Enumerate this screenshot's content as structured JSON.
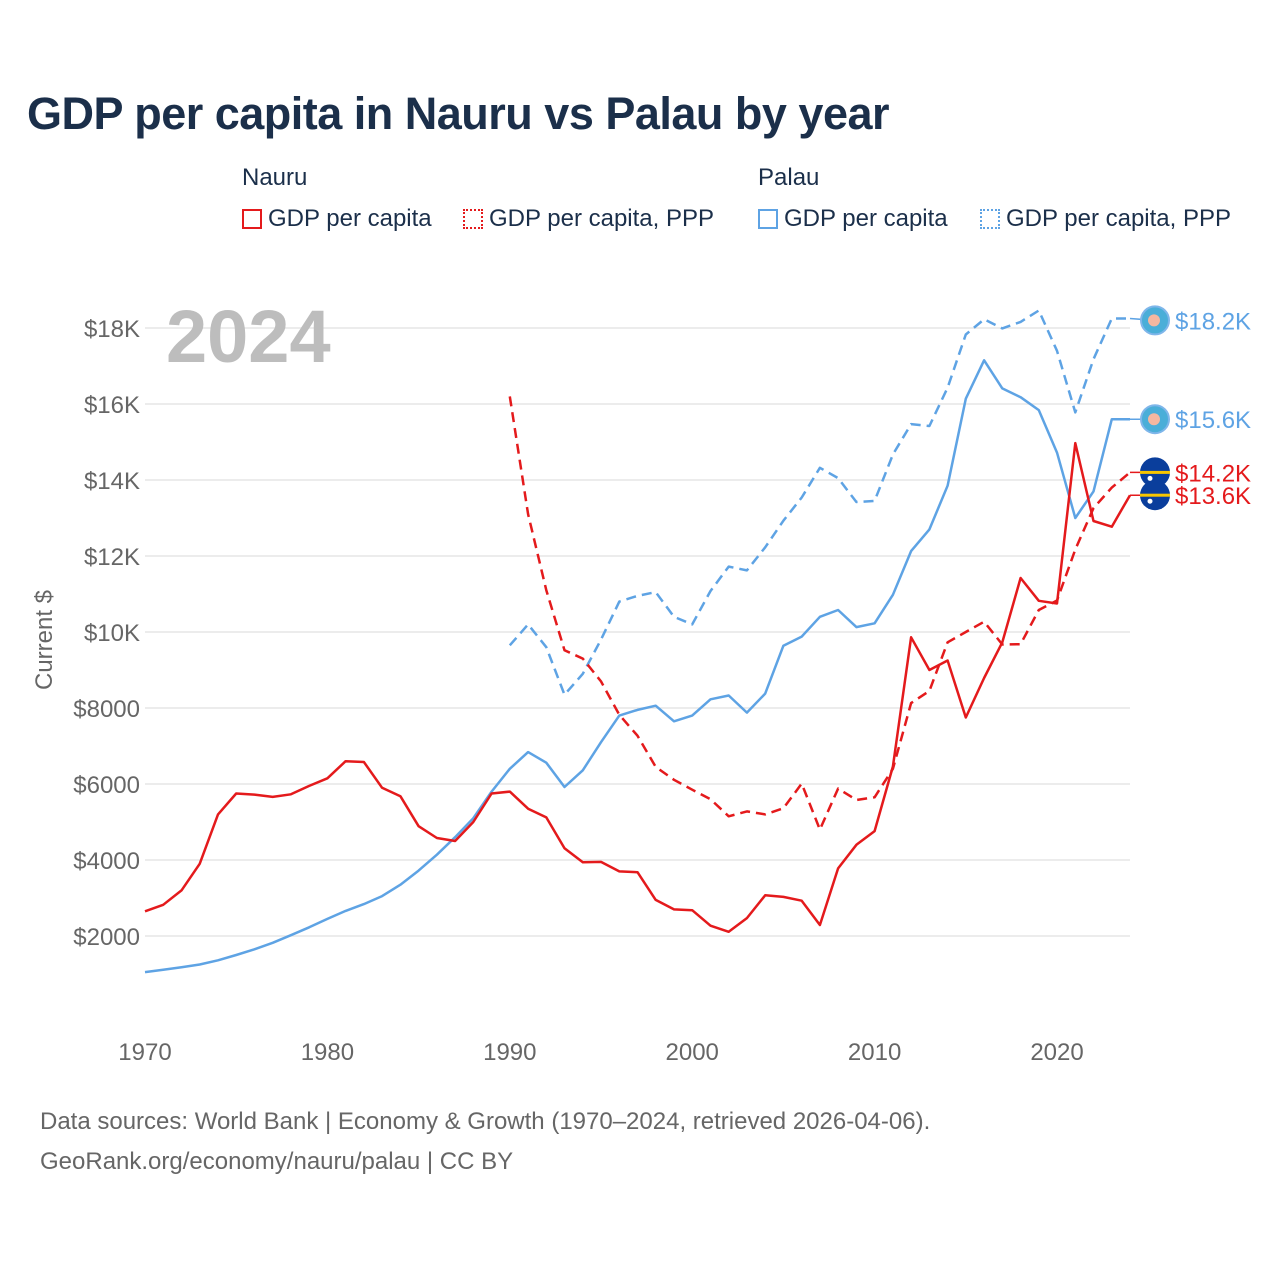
{
  "title": "GDP per capita in Nauru vs Palau by year",
  "legend": {
    "groups": [
      {
        "name": "Nauru",
        "items": [
          {
            "label": "GDP per capita",
            "style": "solid",
            "color": "#e41a1c"
          },
          {
            "label": "GDP per capita, PPP",
            "style": "dotted",
            "color": "#e41a1c"
          }
        ]
      },
      {
        "name": "Palau",
        "items": [
          {
            "label": "GDP per capita",
            "style": "solid",
            "color": "#5ea3e4"
          },
          {
            "label": "GDP per capita, PPP",
            "style": "dotted",
            "color": "#5ea3e4"
          }
        ]
      }
    ]
  },
  "footer": {
    "line1": "Data sources: World Bank | Economy & Growth (1970–2024, retrieved 2026-04-06).",
    "line2": "GeoRank.org/economy/nauru/palau | CC BY"
  },
  "colors": {
    "nauru": "#e41a1c",
    "palau": "#5ea3e4",
    "title": "#1b2f4a",
    "axis_text": "#666666",
    "grid": "#e6e6e6",
    "year_watermark": "#bdbdbd",
    "flag_nauru": "#0a3e9c"
  },
  "chart_data": {
    "type": "line",
    "title": "GDP per capita in Nauru vs Palau by year",
    "year_label": "2024",
    "xlabel": "",
    "ylabel": "Current $",
    "xlim": [
      1970,
      2026
    ],
    "ylim": [
      0,
      19000
    ],
    "x_ticks": [
      1970,
      1980,
      1990,
      2000,
      2010,
      2020
    ],
    "y_ticks": [
      {
        "value": 2000,
        "label": "$2000"
      },
      {
        "value": 4000,
        "label": "$4000"
      },
      {
        "value": 6000,
        "label": "$6000"
      },
      {
        "value": 8000,
        "label": "$8000"
      },
      {
        "value": 10000,
        "label": "$10K"
      },
      {
        "value": 12000,
        "label": "$12K"
      },
      {
        "value": 14000,
        "label": "$14K"
      },
      {
        "value": 16000,
        "label": "$16K"
      },
      {
        "value": 18000,
        "label": "$18K"
      }
    ],
    "series": [
      {
        "name": "Nauru GDP per capita",
        "country": "Nauru",
        "style": "solid",
        "color": "#e41a1c",
        "end_label": "$13.6K",
        "end_value": 13600,
        "x": [
          1970,
          1971,
          1972,
          1973,
          1974,
          1975,
          1976,
          1977,
          1978,
          1979,
          1980,
          1981,
          1982,
          1983,
          1984,
          1985,
          1986,
          1987,
          1988,
          1989,
          1990,
          1991,
          1992,
          1993,
          1994,
          1995,
          1996,
          1997,
          1998,
          1999,
          2000,
          2001,
          2002,
          2003,
          2004,
          2005,
          2006,
          2007,
          2008,
          2009,
          2010,
          2011,
          2012,
          2013,
          2014,
          2015,
          2016,
          2017,
          2018,
          2019,
          2020,
          2021,
          2022,
          2023,
          2024
        ],
        "y": [
          2650,
          2820,
          3200,
          3900,
          5200,
          5750,
          5720,
          5660,
          5730,
          5950,
          6150,
          6600,
          6580,
          5900,
          5680,
          4890,
          4580,
          4500,
          5000,
          5750,
          5800,
          5350,
          5120,
          4310,
          3940,
          3950,
          3700,
          3680,
          2950,
          2700,
          2680,
          2270,
          2110,
          2470,
          3070,
          3030,
          2930,
          2290,
          3780,
          4400,
          4760,
          6460,
          9860,
          9000,
          9250,
          7750,
          8790,
          9730,
          11420,
          10820,
          10750,
          14970,
          12920,
          12770,
          13600
        ]
      },
      {
        "name": "Nauru GDP per capita, PPP",
        "country": "Nauru",
        "style": "dashed",
        "color": "#e41a1c",
        "end_label": "$14.2K",
        "end_value": 14200,
        "x": [
          1990,
          1991,
          1992,
          1993,
          1994,
          1995,
          1996,
          1997,
          1998,
          1999,
          2000,
          2001,
          2002,
          2003,
          2004,
          2005,
          2006,
          2007,
          2008,
          2009,
          2010,
          2011,
          2012,
          2013,
          2014,
          2015,
          2016,
          2017,
          2018,
          2019,
          2020,
          2021,
          2022,
          2023,
          2024
        ],
        "y": [
          16200,
          13100,
          11100,
          9520,
          9300,
          8700,
          7820,
          7270,
          6450,
          6110,
          5850,
          5600,
          5150,
          5280,
          5200,
          5360,
          6010,
          4800,
          5880,
          5580,
          5650,
          6400,
          8130,
          8450,
          9730,
          10000,
          10270,
          9670,
          9680,
          10580,
          10830,
          12170,
          13260,
          13800,
          14200
        ]
      },
      {
        "name": "Palau GDP per capita",
        "country": "Palau",
        "style": "solid",
        "color": "#5ea3e4",
        "end_label": "$15.6K",
        "end_value": 15600,
        "x": [
          1970,
          1971,
          1972,
          1973,
          1974,
          1975,
          1976,
          1977,
          1978,
          1979,
          1980,
          1981,
          1982,
          1983,
          1984,
          1985,
          1986,
          1987,
          1988,
          1989,
          1990,
          1991,
          1992,
          1993,
          1994,
          1995,
          1996,
          1997,
          1998,
          1999,
          2000,
          2001,
          2002,
          2003,
          2004,
          2005,
          2006,
          2007,
          2008,
          2009,
          2010,
          2011,
          2012,
          2013,
          2014,
          2015,
          2016,
          2017,
          2018,
          2019,
          2020,
          2021,
          2022,
          2023,
          2024
        ],
        "y": [
          1050,
          1110,
          1180,
          1250,
          1360,
          1500,
          1650,
          1820,
          2020,
          2230,
          2450,
          2660,
          2840,
          3050,
          3350,
          3720,
          4140,
          4600,
          5100,
          5800,
          6400,
          6840,
          6560,
          5920,
          6360,
          7100,
          7800,
          7950,
          8060,
          7650,
          7800,
          8230,
          8330,
          7880,
          8380,
          9640,
          9880,
          10400,
          10580,
          10130,
          10230,
          10980,
          12130,
          12700,
          13850,
          16140,
          17150,
          16410,
          16180,
          15840,
          14720,
          13000,
          13700,
          15600,
          15600
        ]
      },
      {
        "name": "Palau GDP per capita, PPP",
        "country": "Palau",
        "style": "dashed",
        "color": "#5ea3e4",
        "end_label": "$18.2K",
        "end_value": 18200,
        "x": [
          1990,
          1991,
          1992,
          1993,
          1994,
          1995,
          1996,
          1997,
          1998,
          1999,
          2000,
          2001,
          2002,
          2003,
          2004,
          2005,
          2006,
          2007,
          2008,
          2009,
          2010,
          2011,
          2012,
          2013,
          2014,
          2015,
          2016,
          2017,
          2018,
          2019,
          2020,
          2021,
          2022,
          2023,
          2024
        ],
        "y": [
          9650,
          10200,
          9600,
          8350,
          8900,
          9800,
          10800,
          10950,
          11050,
          10400,
          10200,
          11080,
          11720,
          11620,
          12230,
          12930,
          13540,
          14320,
          14050,
          13420,
          13450,
          14670,
          15470,
          15420,
          16430,
          17830,
          18230,
          17990,
          18160,
          18460,
          17400,
          15780,
          17180,
          18250,
          18250
        ]
      }
    ]
  }
}
